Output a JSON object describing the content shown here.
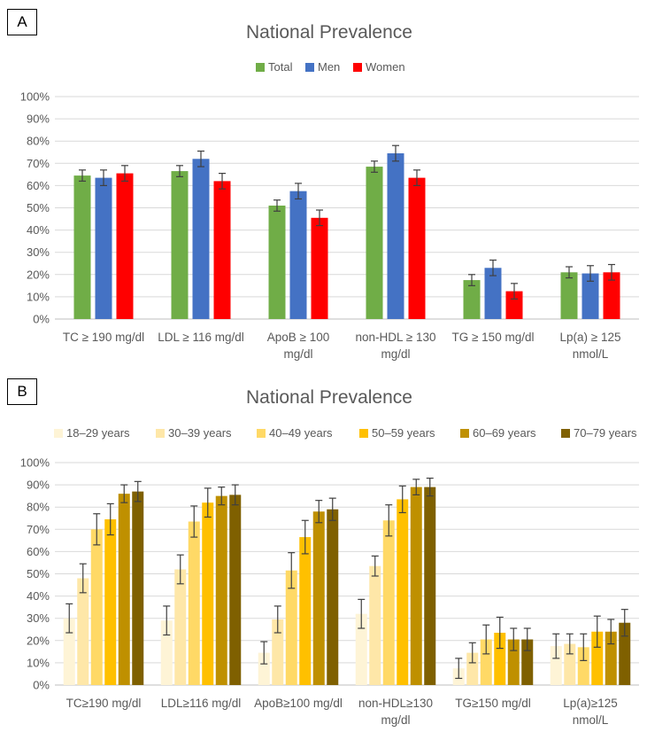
{
  "chart_data": [
    {
      "panel_label": "A",
      "type": "bar",
      "title": "National Prevalence",
      "legend_position": "top",
      "ylim": [
        0,
        100
      ],
      "y_ticks": [
        "0%",
        "10%",
        "20%",
        "30%",
        "40%",
        "50%",
        "60%",
        "70%",
        "80%",
        "90%",
        "100%"
      ],
      "categories": [
        [
          "TC ≥ 190 mg/dl"
        ],
        [
          "LDL ≥ 116 mg/dl"
        ],
        [
          "ApoB ≥ 100",
          "mg/dl"
        ],
        [
          "non-HDL ≥ 130",
          "mg/dl"
        ],
        [
          "TG ≥ 150 mg/dl"
        ],
        [
          "Lp(a) ≥ 125",
          "nmol/L"
        ]
      ],
      "series": [
        {
          "name": "Total",
          "color": "#70ad47",
          "values": [
            64.5,
            66.5,
            51,
            68.5,
            17.5,
            21
          ],
          "errors": [
            2.5,
            2.5,
            2.5,
            2.5,
            2.5,
            2.5
          ]
        },
        {
          "name": "Men",
          "color": "#4472c4",
          "values": [
            63.5,
            72,
            57.5,
            74.5,
            23,
            20.5
          ],
          "errors": [
            3.5,
            3.5,
            3.5,
            3.5,
            3.5,
            3.5
          ]
        },
        {
          "name": "Women",
          "color": "#ff0000",
          "values": [
            65.5,
            62,
            45.5,
            63.5,
            12.5,
            21
          ],
          "errors": [
            3.5,
            3.5,
            3.5,
            3.5,
            3.5,
            3.5
          ]
        }
      ]
    },
    {
      "panel_label": "B",
      "type": "bar",
      "title": "National Prevalence",
      "legend_position": "top",
      "ylim": [
        0,
        100
      ],
      "y_ticks": [
        "0%",
        "10%",
        "20%",
        "30%",
        "40%",
        "50%",
        "60%",
        "70%",
        "80%",
        "90%",
        "100%"
      ],
      "categories": [
        [
          "TC≥190 mg/dl"
        ],
        [
          "LDL≥116 mg/dl"
        ],
        [
          "ApoB≥100 mg/dl"
        ],
        [
          "non-HDL≥130",
          "mg/dl"
        ],
        [
          "TG≥150 mg/dl"
        ],
        [
          "Lp(a)≥125",
          "nmol/L"
        ]
      ],
      "series": [
        {
          "name": "18–29 years",
          "color": "#fef4d6",
          "values": [
            30,
            29,
            14.5,
            32,
            7.5,
            17.5
          ],
          "errors": [
            6.5,
            6.5,
            5,
            6.5,
            4.5,
            5.5
          ]
        },
        {
          "name": "30–39 years",
          "color": "#fee7a8",
          "values": [
            48,
            52,
            29.5,
            53.5,
            14.5,
            18.5
          ],
          "errors": [
            6.5,
            6.5,
            6,
            4.5,
            4.5,
            4.5
          ]
        },
        {
          "name": "40–49 years",
          "color": "#ffd966",
          "values": [
            70,
            73.5,
            51.5,
            74,
            20.5,
            17
          ],
          "errors": [
            7,
            7,
            8,
            7,
            6.5,
            6
          ]
        },
        {
          "name": "50–59 years",
          "color": "#ffc000",
          "values": [
            74.5,
            82,
            66.5,
            83.5,
            23.5,
            24
          ],
          "errors": [
            7,
            6.5,
            7.5,
            6,
            7,
            7
          ]
        },
        {
          "name": "60–69 years",
          "color": "#bf9000",
          "values": [
            86,
            85,
            78,
            89,
            20.5,
            24
          ],
          "errors": [
            4,
            4,
            5,
            3.5,
            5,
            5.5
          ]
        },
        {
          "name": "70–79 years",
          "color": "#7f6000",
          "values": [
            87,
            85.5,
            79,
            89,
            20.5,
            28
          ],
          "errors": [
            4.5,
            4.5,
            5,
            4,
            5,
            6
          ]
        }
      ]
    }
  ]
}
